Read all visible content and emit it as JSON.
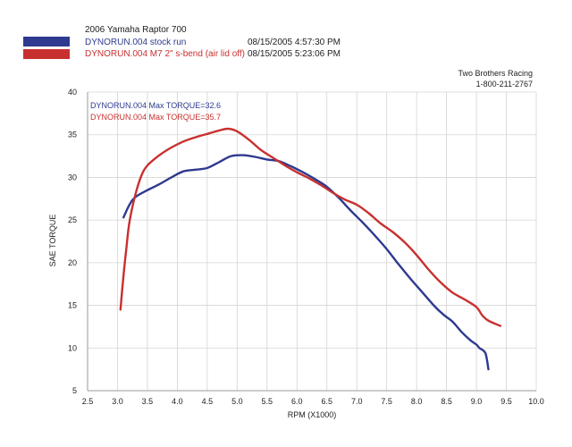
{
  "header": {
    "title": "2006 Yamaha Raptor 700",
    "runs": [
      {
        "label": "DYNORUN.004 stock run",
        "timestamp": "08/15/2005 4:57:30 PM",
        "color": "#2e3a8f"
      },
      {
        "label": "DYNORUN.004 M7  2\" s-bend (air lid off)",
        "timestamp": "08/15/2005 5:23:06 PM",
        "color": "#c8302f"
      }
    ],
    "company": "Two Brothers Racing",
    "phone": "1-800-211-2767"
  },
  "chart_data": {
    "type": "line",
    "xlabel": "RPM (X1000)",
    "ylabel": "SAE TORQUE",
    "xlim": [
      2.5,
      10.0
    ],
    "ylim": [
      5,
      40
    ],
    "xticks": [
      "2.5",
      "3.0",
      "3.5",
      "4.0",
      "4.5",
      "5.0",
      "5.5",
      "6.0",
      "6.5",
      "7.0",
      "7.5",
      "8.0",
      "8.5",
      "9.0",
      "9.5",
      "10.0"
    ],
    "yticks": [
      "5",
      "10",
      "15",
      "20",
      "25",
      "30",
      "35",
      "40"
    ],
    "grid": true,
    "annotations": [
      {
        "text": "DYNORUN.004 Max TORQUE=32.6",
        "color": "#2e3a8f"
      },
      {
        "text": "DYNORUN.004 Max TORQUE=35.7",
        "color": "#c8302f"
      }
    ],
    "series": [
      {
        "name": "DYNORUN.004 stock run",
        "color": "#2e3a8f",
        "points": [
          [
            3.1,
            25.3
          ],
          [
            3.2,
            26.8
          ],
          [
            3.3,
            27.7
          ],
          [
            3.5,
            28.5
          ],
          [
            3.7,
            29.2
          ],
          [
            3.9,
            30.0
          ],
          [
            4.1,
            30.7
          ],
          [
            4.3,
            30.9
          ],
          [
            4.5,
            31.1
          ],
          [
            4.7,
            31.8
          ],
          [
            4.9,
            32.5
          ],
          [
            5.1,
            32.6
          ],
          [
            5.3,
            32.4
          ],
          [
            5.5,
            32.1
          ],
          [
            5.7,
            31.9
          ],
          [
            5.9,
            31.3
          ],
          [
            6.1,
            30.6
          ],
          [
            6.3,
            29.8
          ],
          [
            6.5,
            28.9
          ],
          [
            6.7,
            27.6
          ],
          [
            6.9,
            26.1
          ],
          [
            7.1,
            24.7
          ],
          [
            7.3,
            23.2
          ],
          [
            7.5,
            21.6
          ],
          [
            7.7,
            19.8
          ],
          [
            7.9,
            18.1
          ],
          [
            8.1,
            16.5
          ],
          [
            8.3,
            14.9
          ],
          [
            8.45,
            13.9
          ],
          [
            8.6,
            13.1
          ],
          [
            8.75,
            11.9
          ],
          [
            8.9,
            10.9
          ],
          [
            9.0,
            10.4
          ],
          [
            9.05,
            10.0
          ],
          [
            9.15,
            9.4
          ],
          [
            9.2,
            7.5
          ]
        ]
      },
      {
        "name": "DYNORUN.004 M7  2\" s-bend (air lid off)",
        "color": "#c8302f",
        "points": [
          [
            3.05,
            14.5
          ],
          [
            3.1,
            18.5
          ],
          [
            3.15,
            21.8
          ],
          [
            3.2,
            24.8
          ],
          [
            3.3,
            28.0
          ],
          [
            3.4,
            30.2
          ],
          [
            3.5,
            31.4
          ],
          [
            3.7,
            32.6
          ],
          [
            3.9,
            33.5
          ],
          [
            4.1,
            34.2
          ],
          [
            4.3,
            34.7
          ],
          [
            4.5,
            35.1
          ],
          [
            4.7,
            35.5
          ],
          [
            4.85,
            35.7
          ],
          [
            5.0,
            35.4
          ],
          [
            5.2,
            34.4
          ],
          [
            5.4,
            33.2
          ],
          [
            5.6,
            32.3
          ],
          [
            5.8,
            31.4
          ],
          [
            6.0,
            30.6
          ],
          [
            6.2,
            29.9
          ],
          [
            6.4,
            29.1
          ],
          [
            6.6,
            28.2
          ],
          [
            6.8,
            27.4
          ],
          [
            7.0,
            26.8
          ],
          [
            7.2,
            25.8
          ],
          [
            7.4,
            24.6
          ],
          [
            7.6,
            23.6
          ],
          [
            7.8,
            22.4
          ],
          [
            8.0,
            20.9
          ],
          [
            8.2,
            19.2
          ],
          [
            8.4,
            17.7
          ],
          [
            8.6,
            16.5
          ],
          [
            8.8,
            15.7
          ],
          [
            9.0,
            14.8
          ],
          [
            9.1,
            13.8
          ],
          [
            9.2,
            13.2
          ],
          [
            9.4,
            12.6
          ]
        ]
      }
    ]
  }
}
